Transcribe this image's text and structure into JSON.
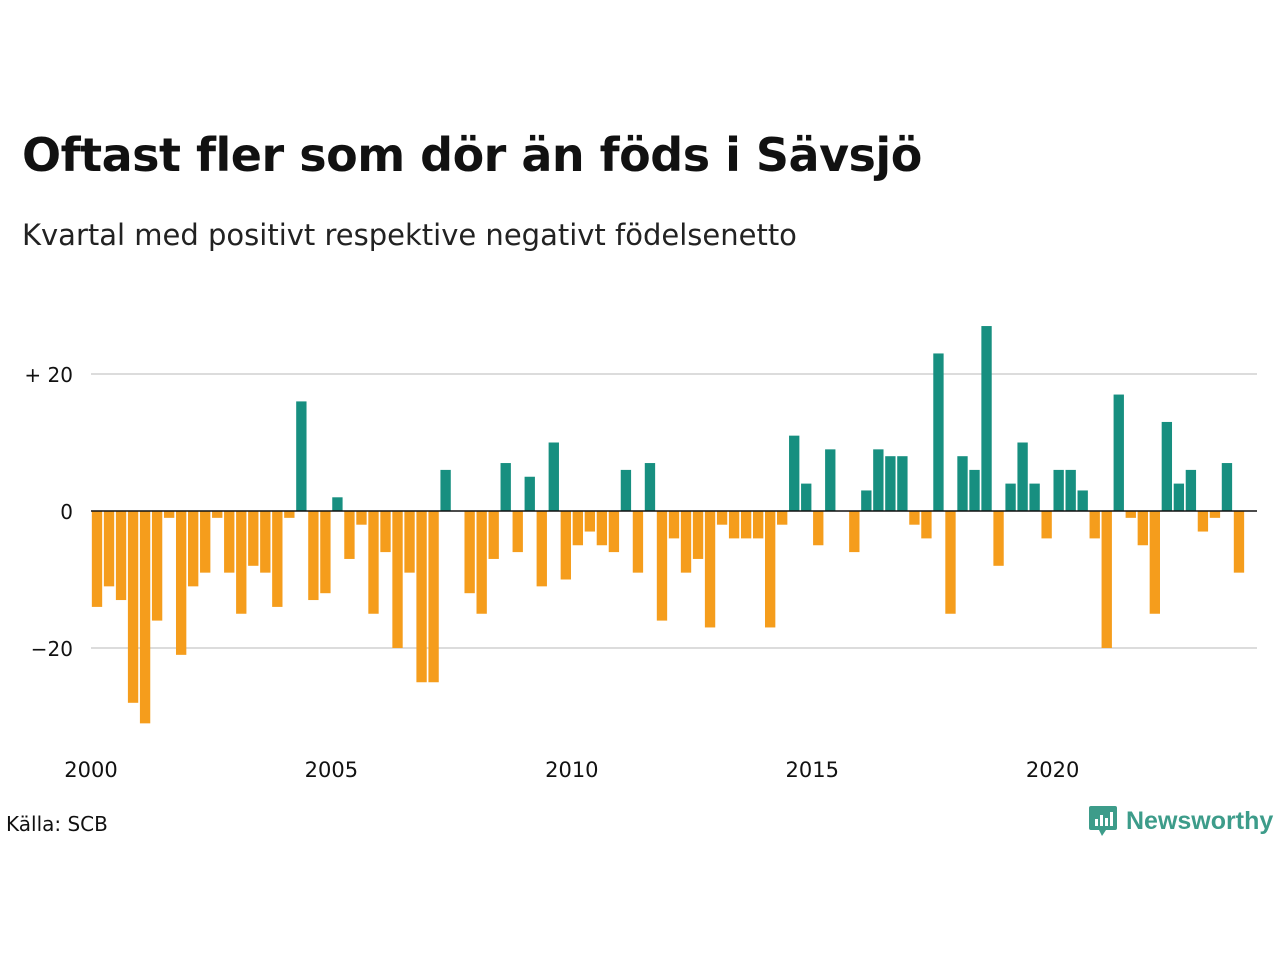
{
  "header": {
    "title": "Oftast fler som dör än föds i Sävsjö",
    "subtitle": "Kvartal med positivt respektive negativt födelsenetto"
  },
  "footer": {
    "source": "Källa: SCB",
    "brand": "Newsworthy",
    "brand_icon": "newsworthy-logo-icon"
  },
  "colors": {
    "positive": "#178f80",
    "negative": "#f59d1c",
    "grid": "#dcdcdc",
    "axis": "#111111",
    "brand": "#3d9c8a"
  },
  "chart_data": {
    "type": "bar",
    "title": "Oftast fler som dör än föds i Sävsjö",
    "subtitle": "Kvartal med positivt respektive negativt födelsenetto",
    "xlabel": "",
    "ylabel": "",
    "ylim": [
      -35,
      33
    ],
    "xlim": [
      2000,
      2024.25
    ],
    "grid": true,
    "x_ticks": [
      {
        "value": 2000,
        "label": "2000"
      },
      {
        "value": 2005,
        "label": "2005"
      },
      {
        "value": 2010,
        "label": "2010"
      },
      {
        "value": 2015,
        "label": "2015"
      },
      {
        "value": 2020,
        "label": "2020"
      }
    ],
    "y_ticks": [
      {
        "value": 20,
        "label": "+ 20"
      },
      {
        "value": 0,
        "label": "0"
      },
      {
        "value": -20,
        "label": "−20"
      }
    ],
    "start": "2000 Q1",
    "values": [
      -14,
      -11,
      -13,
      -28,
      -31,
      -16,
      -1,
      -21,
      -11,
      -9,
      -1,
      -9,
      -15,
      -8,
      -9,
      -14,
      -1,
      16,
      -13,
      -12,
      2,
      -7,
      -2,
      -15,
      -6,
      -20,
      -9,
      -25,
      -25,
      6,
      0,
      -12,
      -15,
      -7,
      7,
      -6,
      5,
      -11,
      10,
      -10,
      -5,
      -3,
      -5,
      -6,
      6,
      -9,
      7,
      -16,
      -4,
      -9,
      -7,
      -17,
      -2,
      -4,
      -4,
      -4,
      -17,
      -2,
      11,
      4,
      -5,
      9,
      0,
      -6,
      3,
      9,
      8,
      8,
      -2,
      -4,
      23,
      -15,
      8,
      6,
      27,
      -8,
      4,
      10,
      4,
      -4,
      6,
      6,
      3,
      -4,
      -20,
      17,
      -1,
      -5,
      -15,
      13,
      4,
      6,
      -3,
      -1,
      7,
      -9
    ]
  }
}
